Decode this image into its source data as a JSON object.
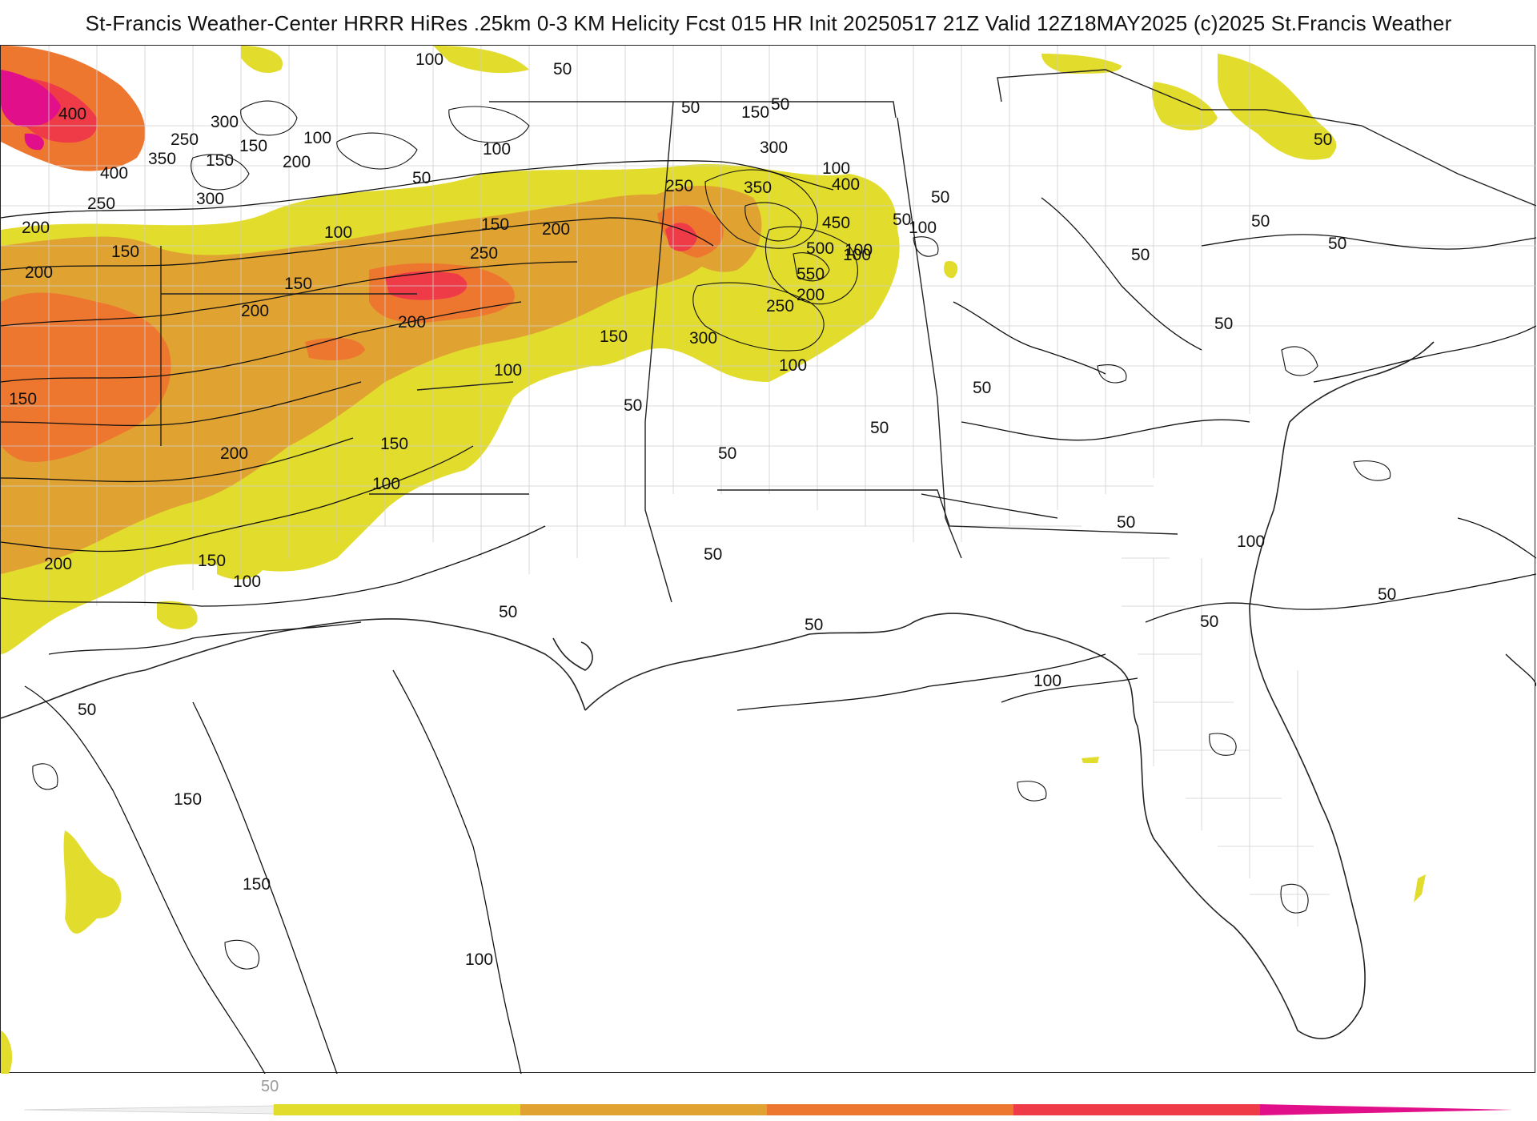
{
  "header": {
    "title": "St-Francis Weather-Center HRRR HiRes .25km 0-3 KM Helicity Fcst 015 HR Init 20250517 21Z  Valid 12Z18MAY2025    (c)2025 St.Francis Weather"
  },
  "legend": {
    "tick_label": "50",
    "colors": [
      "#e2dc2c",
      "#e0a332",
      "#ee7730",
      "#ef3b48",
      "#e20f8a"
    ]
  },
  "contour_labels": [
    "100",
    "50",
    "50",
    "50",
    "150",
    "50",
    "400",
    "300",
    "250",
    "350",
    "150",
    "150",
    "100",
    "200",
    "100",
    "400",
    "50",
    "300",
    "250",
    "200",
    "100",
    "50",
    "300",
    "350",
    "400",
    "100",
    "50",
    "250",
    "100",
    "150",
    "200",
    "450",
    "100",
    "50",
    "50",
    "200",
    "150",
    "250",
    "500",
    "100",
    "150",
    "200",
    "200",
    "550",
    "200",
    "150",
    "300",
    "250",
    "50",
    "100",
    "150",
    "50",
    "200",
    "100",
    "50",
    "50",
    "50",
    "150",
    "100",
    "50",
    "200",
    "50",
    "150",
    "100",
    "100",
    "50",
    "50",
    "50",
    "100",
    "50",
    "150",
    "150",
    "100",
    "50",
    "50"
  ]
}
